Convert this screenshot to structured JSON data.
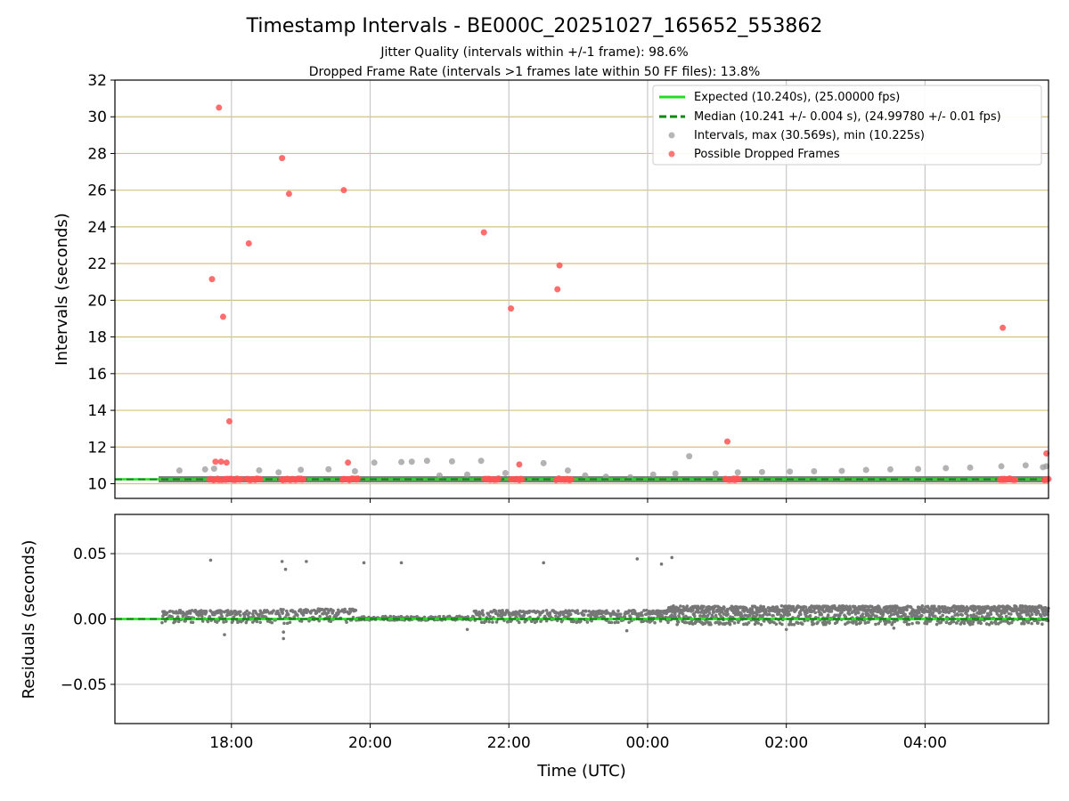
{
  "chart_data": [
    {
      "type": "scatter",
      "title": "Timestamp Intervals - BE000C_20251027_165652_553862",
      "subtitle_lines": [
        "Jitter Quality (intervals within +/-1 frame): 98.6%",
        "Dropped Frame Rate (intervals >1 frames late within 50 FF files): 13.8%"
      ],
      "xlabel": "",
      "ylabel": "Intervals (seconds)",
      "xlim": [
        16.32,
        29.78
      ],
      "ylim": [
        9.2,
        32
      ],
      "yticks": [
        10,
        12,
        14,
        16,
        18,
        20,
        22,
        24,
        26,
        28,
        30,
        32
      ],
      "xgrid_hours": [
        18,
        20,
        22,
        24,
        26,
        28
      ],
      "grid": true,
      "legend_position": "top-right",
      "legend": [
        {
          "label": "Expected (10.240s), (25.00000 fps)",
          "kind": "line",
          "color": "#22dd22"
        },
        {
          "label": "Median (10.241 +/- 0.004 s), (24.99780 +/- 0.01 fps)",
          "kind": "dashed",
          "color": "#118811"
        },
        {
          "label": "Intervals, max (30.569s), min (10.225s)",
          "kind": "marker",
          "color": "#999999"
        },
        {
          "label": "Possible Dropped Frames",
          "kind": "marker",
          "color": "#ff5555"
        }
      ],
      "expected": 10.24,
      "median": 10.241,
      "series": [
        {
          "name": "Intervals",
          "color": "#999999",
          "x": [
            17.25,
            17.62,
            17.75,
            18.4,
            18.68,
            19.0,
            19.4,
            19.78,
            20.06,
            20.45,
            20.6,
            20.82,
            21.0,
            21.18,
            21.4,
            21.6,
            21.95,
            22.5,
            22.85,
            23.1,
            23.4,
            23.75,
            24.08,
            24.4,
            24.6,
            24.98,
            25.3,
            25.65,
            26.05,
            26.4,
            26.8,
            27.15,
            27.5,
            27.9,
            28.3,
            28.65,
            29.1,
            29.45,
            29.7,
            29.75
          ],
          "y": [
            10.72,
            10.78,
            10.82,
            10.73,
            10.62,
            10.76,
            10.79,
            10.68,
            11.15,
            11.18,
            11.2,
            11.25,
            10.45,
            11.22,
            10.5,
            11.25,
            10.58,
            11.12,
            10.72,
            10.45,
            10.38,
            10.35,
            10.5,
            10.55,
            11.5,
            10.56,
            10.62,
            10.64,
            10.66,
            10.68,
            10.7,
            10.75,
            10.78,
            10.8,
            10.85,
            10.88,
            10.95,
            11.0,
            10.9,
            10.95
          ]
        },
        {
          "name": "Possible Dropped Frames",
          "color": "#ff5555",
          "x": [
            17.72,
            17.77,
            17.82,
            17.85,
            17.88,
            17.93,
            17.97,
            18.25,
            18.73,
            18.83,
            19.62,
            19.68,
            21.64,
            22.03,
            22.15,
            22.7,
            22.73,
            25.15,
            29.12,
            29.75
          ],
          "y": [
            21.15,
            11.2,
            30.5,
            11.2,
            19.1,
            11.15,
            13.4,
            23.1,
            27.75,
            25.8,
            26.0,
            11.15,
            23.7,
            19.55,
            11.05,
            20.6,
            21.9,
            12.3,
            18.5,
            11.65
          ]
        },
        {
          "name": "Dropped frame clusters",
          "color": "#ff5555",
          "x_ranges": [
            [
              17.68,
              18.15
            ],
            [
              18.22,
              18.42
            ],
            [
              18.72,
              19.05
            ],
            [
              19.6,
              19.82
            ],
            [
              21.65,
              21.85
            ],
            [
              22.03,
              22.2
            ],
            [
              22.68,
              22.9
            ],
            [
              25.12,
              25.32
            ],
            [
              29.08,
              29.3
            ],
            [
              29.72,
              29.78
            ]
          ],
          "y": 10.24
        }
      ]
    },
    {
      "type": "scatter",
      "title": "",
      "xlabel": "Time (UTC)",
      "ylabel": "Residuals (seconds)",
      "xlim": [
        16.32,
        29.78
      ],
      "ylim": [
        -0.08,
        0.08
      ],
      "yticks": [
        -0.05,
        0.0,
        0.05
      ],
      "ytick_labels": [
        "−0.05",
        "0.00",
        "0.05"
      ],
      "xtick_labels": [
        "18:00",
        "20:00",
        "22:00",
        "00:00",
        "02:00",
        "04:00"
      ],
      "xtick_hours": [
        18,
        20,
        22,
        24,
        26,
        28
      ],
      "grid": true,
      "color": "#777777",
      "segments": [
        {
          "x0": 17.0,
          "x1": 18.7,
          "amp": 0.006
        },
        {
          "x0": 18.7,
          "x1": 19.8,
          "amp": 0.007
        },
        {
          "x0": 19.8,
          "x1": 21.5,
          "amp": 0.002
        },
        {
          "x0": 21.5,
          "x1": 24.3,
          "amp": 0.006
        },
        {
          "x0": 24.3,
          "x1": 29.78,
          "amp": 0.009
        }
      ],
      "outliers": {
        "x": [
          17.7,
          18.73,
          18.78,
          19.08,
          19.91,
          20.45,
          22.5,
          23.85,
          24.2,
          24.35,
          17.9,
          18.75,
          18.75,
          21.4,
          23.7,
          26.0,
          27.55
        ],
        "y": [
          0.045,
          0.044,
          0.038,
          0.044,
          0.043,
          0.043,
          0.043,
          0.046,
          0.042,
          0.047,
          -0.012,
          -0.015,
          -0.01,
          -0.008,
          -0.009,
          -0.008,
          -0.007
        ]
      },
      "expected_line": 0.0,
      "median_line": 0.0
    }
  ],
  "colors": {
    "expected": "#22dd22",
    "median": "#118811",
    "interval": "#999999",
    "dropped": "#ff5555",
    "hgrid": "#d4c082",
    "vgrid": "#c8c8c8",
    "residual": "#777777"
  }
}
